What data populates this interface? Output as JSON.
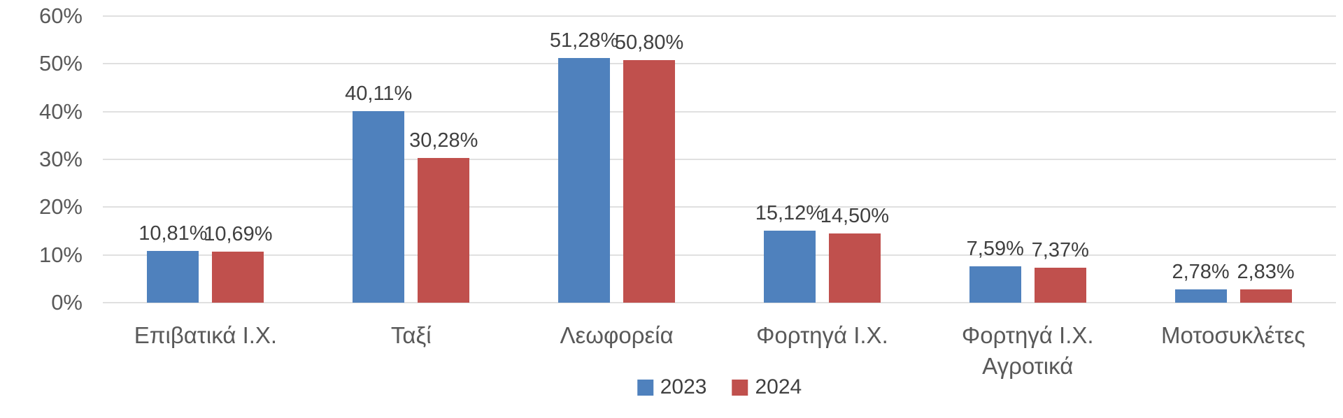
{
  "chart_data": {
    "type": "bar",
    "title": "",
    "xlabel": "",
    "ylabel": "",
    "categories": [
      [
        "Επιβατικά Ι.Χ."
      ],
      [
        "Ταξί"
      ],
      [
        "Λεωφορεία"
      ],
      [
        "Φορτηγά Ι.Χ."
      ],
      [
        "Φορτηγά Ι.Χ.",
        "Αγροτικά"
      ],
      [
        "Μοτοσυκλέτες"
      ]
    ],
    "series": [
      {
        "name": "2023",
        "color": "#4F81BD",
        "values": [
          10.81,
          40.11,
          51.28,
          15.12,
          7.59,
          2.78
        ],
        "labels": [
          "10,81%",
          "40,11%",
          "51,28%",
          "15,12%",
          "7,59%",
          "2,78%"
        ]
      },
      {
        "name": "2024",
        "color": "#C0504D",
        "values": [
          10.69,
          30.28,
          50.8,
          14.5,
          7.37,
          2.83
        ],
        "labels": [
          "10,69%",
          "30,28%",
          "50,80%",
          "14,50%",
          "7,37%",
          "2,83%"
        ]
      }
    ],
    "ylim": [
      0,
      60
    ],
    "ytick_step": 10,
    "ytick_labels": [
      "0%",
      "10%",
      "20%",
      "30%",
      "40%",
      "50%",
      "60%"
    ],
    "grid": true,
    "legend_position": "bottom",
    "colors": {
      "grid": "#e0e0e0",
      "axis_text": "#595959",
      "data_label_text": "#404040"
    }
  }
}
